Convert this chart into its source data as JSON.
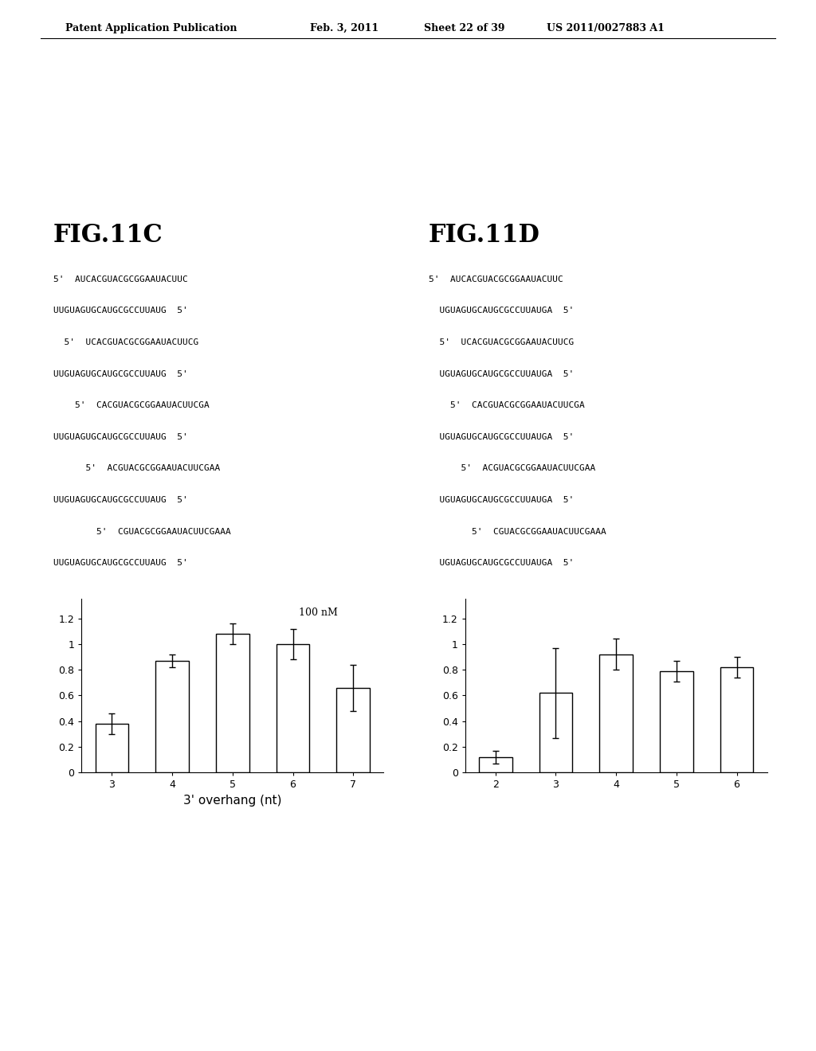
{
  "header_left": "Patent Application Publication",
  "header_date": "Feb. 3, 2011",
  "header_sheet": "Sheet 22 of 39",
  "header_patent": "US 2011/0027883 A1",
  "fig11c_title": "FIG.11C",
  "fig11c_seq_lines": [
    "5'  AUCACGUACGCGGAAUACUUC",
    "UUGUAGUGCAUGCGCCUUAUG  5'",
    "  5'  UCACGUACGCGGAAUACUUCG",
    "UUGUAGUGCAUGCGCCUUAUG  5'",
    "    5'  CACGUACGCGGAAUACUUCGA",
    "UUGUAGUGCAUGCGCCUUAUG  5'",
    "      5'  ACGUACGCGGAAUACUUCGAA",
    "UUGUAGUGCAUGCGCCUUAUG  5'",
    "        5'  CGUACGCGGAAUACUUCGAAA",
    "UUGUAGUGCAUGCGCCUUAUG  5'"
  ],
  "fig11c_annotation": "100 nM",
  "fig11c_bars": [
    0.38,
    0.87,
    1.08,
    1.0,
    0.66
  ],
  "fig11c_errors": [
    0.08,
    0.05,
    0.08,
    0.12,
    0.18
  ],
  "fig11c_xticks": [
    "3",
    "4",
    "5",
    "6",
    "7"
  ],
  "fig11c_xlabel": "3' overhang (nt)",
  "fig11c_ylim": [
    0,
    1.35
  ],
  "fig11c_yticks": [
    0,
    0.2,
    0.4,
    0.6,
    0.8,
    1.0,
    1.2
  ],
  "fig11c_yticklabels": [
    "0",
    "0.2",
    "0.4",
    "0.6",
    "0.8",
    "1",
    "1.2"
  ],
  "fig11d_title": "FIG.11D",
  "fig11d_seq_lines": [
    "5'  AUCACGUACGCGGAAUACUUC",
    "  UGUAGUGCAUGCGCCUUAUGA  5'",
    "  5'  UCACGUACGCGGAAUACUUCG",
    "  UGUAGUGCAUGCGCCUUAUGA  5'",
    "    5'  CACGUACGCGGAAUACUUCGA",
    "  UGUAGUGCAUGCGCCUUAUGA  5'",
    "      5'  ACGUACGCGGAAUACUUCGAA",
    "  UGUAGUGCAUGCGCCUUAUGA  5'",
    "        5'  CGUACGCGGAAUACUUCGAAA",
    "  UGUAGUGCAUGCGCCUUAUGA  5'"
  ],
  "fig11d_bars": [
    0.12,
    0.62,
    0.92,
    0.79,
    0.82
  ],
  "fig11d_errors": [
    0.05,
    0.35,
    0.12,
    0.08,
    0.08
  ],
  "fig11d_xticks": [
    "2",
    "3",
    "4",
    "5",
    "6"
  ],
  "fig11d_ylim": [
    0,
    1.35
  ],
  "fig11d_yticks": [
    0,
    0.2,
    0.4,
    0.6,
    0.8,
    1.0,
    1.2
  ],
  "fig11d_yticklabels": [
    "0",
    "0.2",
    "0.4",
    "0.6",
    "0.8",
    "1",
    "1.2"
  ],
  "bar_color": "white",
  "bar_edgecolor": "black",
  "bar_linewidth": 1.0,
  "bar_width": 0.55,
  "error_capsize": 3,
  "error_color": "black",
  "error_linewidth": 1.0,
  "background_color": "white",
  "text_color": "black",
  "seq_fontsize": 8.0,
  "fig_title_fontsize": 22,
  "header_fontsize": 9,
  "axis_fontsize": 9,
  "xlabel_fontsize": 11,
  "annotation_fontsize": 9
}
